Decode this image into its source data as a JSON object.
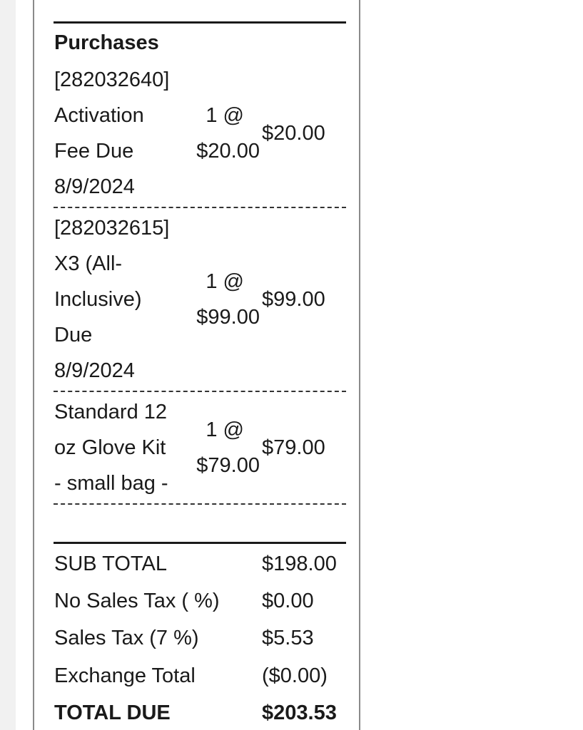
{
  "section_title": "Purchases",
  "items": [
    {
      "lines": [
        "[282032640]",
        "Activation",
        "Fee Due",
        "8/9/2024"
      ],
      "qty": "1 @",
      "unit_price": "$20.00",
      "amount": "$20.00"
    },
    {
      "lines": [
        "[282032615]",
        "X3 (All-",
        "Inclusive)",
        "Due",
        "8/9/2024"
      ],
      "qty": "1 @",
      "unit_price": "$99.00",
      "amount": "$99.00"
    },
    {
      "lines": [
        "Standard 12",
        "oz Glove Kit",
        "- small bag -"
      ],
      "qty": "1 @",
      "unit_price": "$79.00",
      "amount": "$79.00"
    }
  ],
  "totals": [
    {
      "label": "SUB TOTAL",
      "value": "$198.00"
    },
    {
      "label": "No Sales Tax ( %)",
      "value": "$0.00"
    },
    {
      "label": "Sales Tax (7 %)",
      "value": "$5.53"
    },
    {
      "label": "Exchange Total",
      "value": "($0.00)"
    },
    {
      "label": "TOTAL DUE",
      "value": "$203.53"
    }
  ]
}
